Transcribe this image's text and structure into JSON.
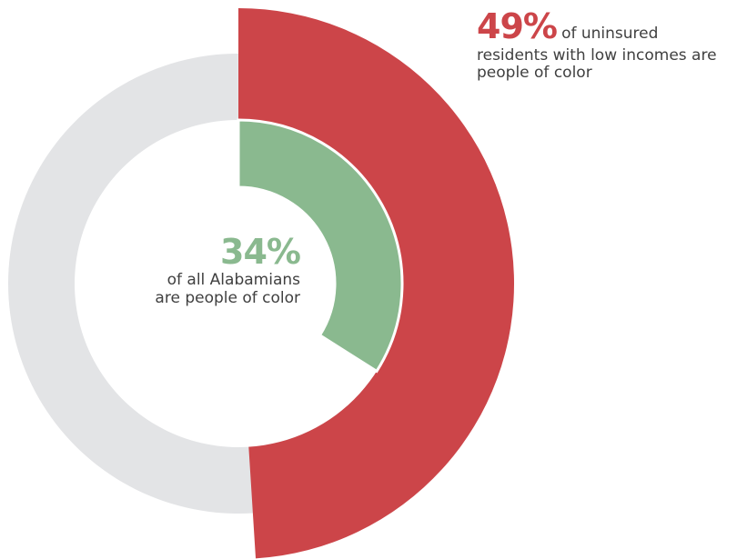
{
  "chart_data": {
    "type": "donut",
    "rings": [
      {
        "ring": "outer",
        "value": 49,
        "label_value": "49%",
        "label_text": "of uninsured residents with low incomes are people of color",
        "color": "#cc4549"
      },
      {
        "ring": "inner",
        "value": 34,
        "label_value": "34%",
        "label_text": "of all Alabamians are people of color",
        "color": "#8ab98f"
      }
    ],
    "track_color": "#e3e4e6",
    "units": "percent"
  },
  "labels": {
    "outer_pct": "49%",
    "outer_text": "of uninsured residents with low incomes are people of color",
    "inner_pct": "34%",
    "inner_text_line1": "of all Alabamians",
    "inner_text_line2": "are people of color"
  }
}
